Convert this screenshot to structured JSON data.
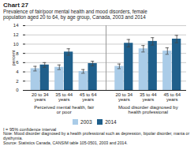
{
  "chart_data": {
    "type": "bar",
    "title": "Chart 27",
    "subtitle": [
      "Prevalence of fair/poor mental health and mood disorders, female",
      "population aged 20 to 64, by age group, Canada, 2003 and 2014"
    ],
    "ylabel": "percent",
    "categories": [
      "20 to 34 years",
      "35 to 44 years",
      "45 to 64 years",
      "20 to 34 years",
      "35 to 44 years",
      "45 to 64 years"
    ],
    "sections": [
      {
        "label": "Perceived mental health, fair or poor",
        "categories": [
          "20 to 34 years",
          "35 to 44 years",
          "45 to 64 years"
        ]
      },
      {
        "label": "Mood disorder diagnosed by health professional",
        "categories": [
          "20 to 34 years",
          "35 to 44 years",
          "45 to 64 years"
        ]
      }
    ],
    "series": [
      {
        "name": "2003",
        "color": "#aacce8",
        "values": [
          4.7,
          5.0,
          4.1,
          5.2,
          9.0,
          8.5
        ],
        "error_lo": [
          0.5,
          0.5,
          0.4,
          0.5,
          0.7,
          0.7
        ],
        "error_hi": [
          0.5,
          0.5,
          0.4,
          0.5,
          0.7,
          0.7
        ]
      },
      {
        "name": "2014",
        "color": "#1f5f8b",
        "values": [
          5.5,
          8.3,
          5.8,
          10.2,
          10.6,
          11.1
        ],
        "error_lo": [
          0.5,
          0.7,
          0.5,
          0.8,
          0.8,
          0.8
        ],
        "error_hi": [
          0.5,
          0.7,
          0.5,
          0.8,
          0.8,
          0.8
        ]
      }
    ],
    "ylim": [
      0,
      14
    ],
    "yticks": [
      0,
      2,
      4,
      6,
      8,
      10,
      12,
      14
    ],
    "grid": true,
    "legend": "bottom",
    "footnote": "I = 95% confidence interval",
    "note": "Note: Mood disorder diagnosed by a health professional such as depression, bipolar disorder, mania or dysthymia.",
    "source": "Source: Statistics Canada, CANSIM table 105-0501, 2003 and 2014."
  }
}
